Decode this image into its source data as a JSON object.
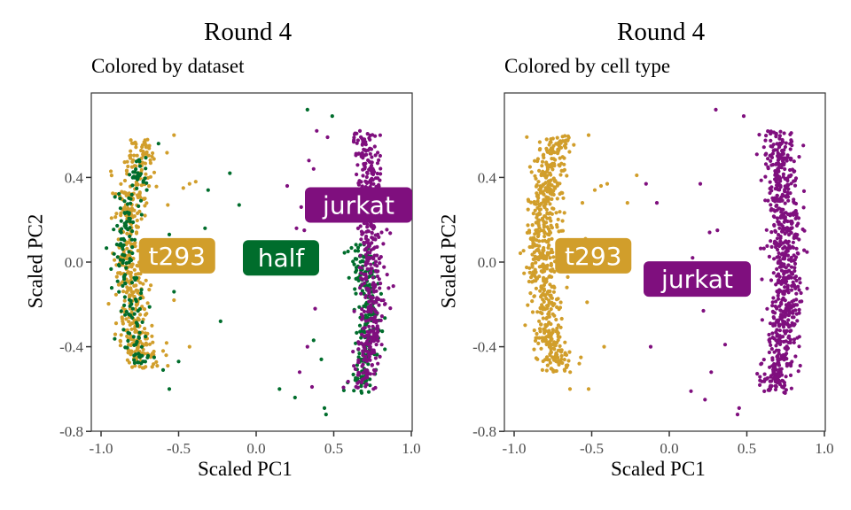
{
  "colors": {
    "t293": "#D19E2B",
    "half": "#006D2C",
    "jurkat": "#7F0F7E",
    "axis": "#333333",
    "tick_text": "#4d4d4d"
  },
  "chart_data": [
    {
      "type": "scatter",
      "title": "Round 4",
      "subtitle": "Colored by dataset",
      "xlabel": "Scaled PC1",
      "ylabel": "Scaled PC2",
      "xlim": [
        -1.05,
        1.0
      ],
      "ylim": [
        -0.8,
        0.8
      ],
      "xticks": [
        -1.0,
        -0.5,
        0.0,
        0.5,
        1.0
      ],
      "xtick_labels": [
        "-1.0",
        "-0.5",
        "0.0",
        "0.5",
        "1.0"
      ],
      "yticks": [
        -0.8,
        -0.4,
        0.0,
        0.4
      ],
      "ytick_labels": [
        "-0.8",
        "-0.4",
        "0.0",
        "0.4"
      ],
      "grid": false,
      "legend": "none",
      "series": [
        {
          "name": "t293",
          "color_key": "t293",
          "cluster": {
            "center_x": -0.82,
            "arc_depth": 0.1,
            "y_range": [
              -0.5,
              0.58
            ],
            "x_spread": 0.1,
            "n": 420,
            "side": "left"
          },
          "outliers": [
            [
              -0.53,
              0.6
            ],
            [
              -0.39,
              0.38
            ],
            [
              -0.43,
              0.37
            ],
            [
              -0.47,
              0.35
            ],
            [
              -0.57,
              0.27
            ],
            [
              -0.55,
              0.06
            ],
            [
              -0.69,
              -0.13
            ],
            [
              -0.53,
              -0.18
            ],
            [
              -0.43,
              -0.4
            ],
            [
              -0.58,
              -0.44
            ],
            [
              -0.57,
              -0.49
            ],
            [
              -0.6,
              -0.42
            ]
          ]
        },
        {
          "name": "half",
          "color_key": "half",
          "cluster": {
            "center_x": -0.84,
            "arc_depth": 0.1,
            "y_range": [
              -0.48,
              0.5
            ],
            "x_spread": 0.08,
            "n": 170,
            "side": "left"
          },
          "outliers": [
            [
              -0.63,
              0.56
            ],
            [
              -0.31,
              0.34
            ],
            [
              -0.17,
              0.42
            ],
            [
              -0.11,
              0.27
            ],
            [
              -0.33,
              0.16
            ],
            [
              -0.49,
              0.07
            ],
            [
              -0.56,
              0.13
            ],
            [
              -0.53,
              -0.14
            ],
            [
              -0.23,
              -0.28
            ],
            [
              -0.5,
              -0.47
            ],
            [
              -0.6,
              -0.51
            ],
            [
              -0.56,
              -0.6
            ],
            [
              0.33,
              0.72
            ],
            [
              0.49,
              0.69
            ],
            [
              0.15,
              -0.6
            ],
            [
              0.25,
              -0.64
            ]
          ]
        },
        {
          "name": "half",
          "color_key": "half",
          "cluster": {
            "center_x": 0.72,
            "arc_depth": 0.1,
            "y_range": [
              -0.62,
              0.1
            ],
            "x_spread": 0.08,
            "n": 210,
            "side": "right"
          },
          "outliers": [
            [
              0.37,
              -0.37
            ],
            [
              0.42,
              -0.46
            ],
            [
              0.45,
              -0.72
            ],
            [
              0.44,
              -0.69
            ]
          ]
        },
        {
          "name": "jurkat",
          "color_key": "jurkat",
          "cluster": {
            "center_x": 0.75,
            "arc_depth": 0.12,
            "y_range": [
              -0.6,
              0.62
            ],
            "x_spread": 0.08,
            "n": 480,
            "side": "right"
          },
          "outliers": [
            [
              0.39,
              0.62
            ],
            [
              0.46,
              0.59
            ],
            [
              0.34,
              0.48
            ],
            [
              0.37,
              0.44
            ],
            [
              0.29,
              0.26
            ],
            [
              0.2,
              0.36
            ],
            [
              0.26,
              0.16
            ],
            [
              0.31,
              0.15
            ],
            [
              0.38,
              -0.22
            ],
            [
              0.28,
              -0.52
            ],
            [
              0.36,
              -0.59
            ],
            [
              0.33,
              -0.4
            ]
          ]
        }
      ],
      "annotations": [
        {
          "text": "t293",
          "x": -0.51,
          "y": 0.03,
          "color_key": "t293"
        },
        {
          "text": "half",
          "x": 0.16,
          "y": 0.02,
          "color_key": "half"
        },
        {
          "text": "jurkat",
          "x": 0.66,
          "y": 0.27,
          "color_key": "jurkat"
        }
      ]
    },
    {
      "type": "scatter",
      "title": "Round 4",
      "subtitle": "Colored by cell type",
      "xlabel": "Scaled PC1",
      "ylabel": "Scaled PC2",
      "xlim": [
        -1.05,
        1.0
      ],
      "ylim": [
        -0.8,
        0.8
      ],
      "xticks": [
        -1.0,
        -0.5,
        0.0,
        0.5,
        1.0
      ],
      "xtick_labels": [
        "-1.0",
        "-0.5",
        "0.0",
        "0.5",
        "1.0"
      ],
      "yticks": [
        -0.8,
        -0.4,
        0.0,
        0.4
      ],
      "ytick_labels": [
        "-0.8",
        "-0.4",
        "0.0",
        "0.4"
      ],
      "grid": false,
      "legend": "none",
      "series": [
        {
          "name": "t293",
          "color_key": "t293",
          "cluster": {
            "center_x": -0.82,
            "arc_depth": 0.1,
            "y_range": [
              -0.52,
              0.6
            ],
            "x_spread": 0.1,
            "n": 600,
            "side": "left"
          },
          "outliers": [
            [
              -0.52,
              0.6
            ],
            [
              -0.4,
              0.37
            ],
            [
              -0.44,
              0.36
            ],
            [
              -0.48,
              0.34
            ],
            [
              -0.56,
              0.28
            ],
            [
              -0.27,
              0.28
            ],
            [
              -0.54,
              0.11
            ],
            [
              -0.66,
              -0.12
            ],
            [
              -0.53,
              -0.19
            ],
            [
              -0.42,
              -0.4
            ],
            [
              -0.57,
              -0.45
            ],
            [
              -0.58,
              -0.48
            ],
            [
              -0.64,
              -0.6
            ],
            [
              -0.52,
              -0.6
            ],
            [
              -0.21,
              0.41
            ]
          ]
        },
        {
          "name": "jurkat",
          "color_key": "jurkat",
          "cluster": {
            "center_x": 0.75,
            "arc_depth": 0.12,
            "y_range": [
              -0.62,
              0.62
            ],
            "x_spread": 0.09,
            "n": 700,
            "side": "right"
          },
          "outliers": [
            [
              -0.08,
              0.28
            ],
            [
              -0.15,
              0.37
            ],
            [
              -0.12,
              -0.4
            ],
            [
              0.3,
              0.72
            ],
            [
              0.48,
              0.69
            ],
            [
              0.2,
              0.37
            ],
            [
              0.26,
              0.14
            ],
            [
              0.31,
              0.15
            ],
            [
              0.15,
              0.02
            ],
            [
              0.22,
              -0.23
            ],
            [
              0.36,
              -0.39
            ],
            [
              0.27,
              -0.52
            ],
            [
              0.14,
              -0.61
            ],
            [
              0.23,
              -0.65
            ],
            [
              0.44,
              -0.72
            ],
            [
              0.45,
              -0.69
            ]
          ]
        }
      ],
      "annotations": [
        {
          "text": "t293",
          "x": -0.49,
          "y": 0.03,
          "color_key": "t293"
        },
        {
          "text": "jurkat",
          "x": 0.18,
          "y": -0.08,
          "color_key": "jurkat"
        }
      ]
    }
  ]
}
